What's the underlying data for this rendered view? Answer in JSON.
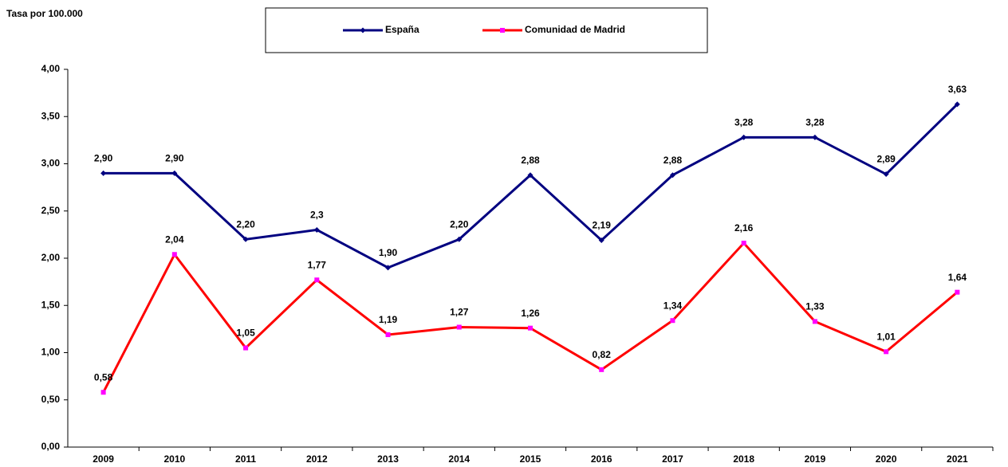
{
  "chart_data": {
    "type": "line",
    "title": "Tasa por 100.000",
    "categories": [
      "2009",
      "2010",
      "2011",
      "2012",
      "2013",
      "2014",
      "2015",
      "2016",
      "2017",
      "2018",
      "2019",
      "2020",
      "2021"
    ],
    "series": [
      {
        "name": "España",
        "color": "#000080",
        "marker": "diamond",
        "marker_color": "#000080",
        "values": [
          2.9,
          2.9,
          2.2,
          2.3,
          1.9,
          2.2,
          2.88,
          2.19,
          2.88,
          3.28,
          3.28,
          2.89,
          3.63
        ],
        "value_labels": [
          "2,90",
          "2,90",
          "2,20",
          "2,3",
          "1,90",
          "2,20",
          "2,88",
          "2,19",
          "2,88",
          "3,28",
          "3,28",
          "2,89",
          "3,63"
        ]
      },
      {
        "name": "Comunidad de Madrid",
        "color": "#ff0000",
        "marker": "square",
        "marker_color": "#ff00ff",
        "values": [
          0.58,
          2.04,
          1.05,
          1.77,
          1.19,
          1.27,
          1.26,
          0.82,
          1.34,
          2.16,
          1.33,
          1.01,
          1.64
        ],
        "value_labels": [
          "0,58",
          "2,04",
          "1,05",
          "1,77",
          "1,19",
          "1,27",
          "1,26",
          "0,82",
          "1,34",
          "2,16",
          "1,33",
          "1,01",
          "1,64"
        ]
      }
    ],
    "ylim": [
      0,
      4
    ],
    "yticks": [
      {
        "value": 0,
        "label": "0,00"
      },
      {
        "value": 0.5,
        "label": "0,50"
      },
      {
        "value": 1,
        "label": "1,00"
      },
      {
        "value": 1.5,
        "label": "1,50"
      },
      {
        "value": 2,
        "label": "2,00"
      },
      {
        "value": 2.5,
        "label": "2,50"
      },
      {
        "value": 3,
        "label": "3,00"
      },
      {
        "value": 3.5,
        "label": "3,50"
      },
      {
        "value": 4,
        "label": "4,00"
      }
    ],
    "grid": false,
    "legend": "top"
  }
}
